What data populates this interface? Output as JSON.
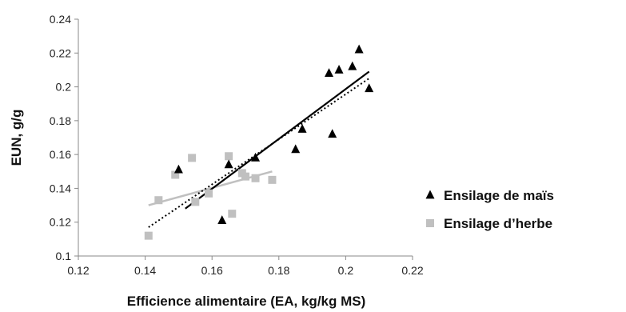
{
  "chart_data": {
    "type": "scatter",
    "xlabel": "Efficience alimentaire (EA, kg/kg MS)",
    "ylabel": "EUN, g/g",
    "xlim": [
      0.12,
      0.22
    ],
    "ylim": [
      0.1,
      0.24
    ],
    "x_ticks": [
      "0.12",
      "0.14",
      "0.16",
      "0.18",
      "0.2",
      "0.22"
    ],
    "y_ticks": [
      "0.1",
      "0.12",
      "0.14",
      "0.16",
      "0.18",
      "0.2",
      "0.22",
      "0.24"
    ],
    "grid": false,
    "legend_position": "right",
    "series": [
      {
        "name": "Ensilage de maïs",
        "marker": "triangle",
        "color": "#000000",
        "points": [
          [
            0.15,
            0.151
          ],
          [
            0.163,
            0.121
          ],
          [
            0.165,
            0.154
          ],
          [
            0.173,
            0.158
          ],
          [
            0.185,
            0.163
          ],
          [
            0.187,
            0.175
          ],
          [
            0.195,
            0.208
          ],
          [
            0.196,
            0.172
          ],
          [
            0.198,
            0.21
          ],
          [
            0.202,
            0.212
          ],
          [
            0.204,
            0.222
          ],
          [
            0.207,
            0.199
          ]
        ],
        "trend_solid": [
          [
            0.152,
            0.128
          ],
          [
            0.207,
            0.209
          ]
        ],
        "trend_dotted": [
          [
            0.141,
            0.117
          ],
          [
            0.207,
            0.205
          ]
        ]
      },
      {
        "name": "Ensilage d’herbe",
        "marker": "square",
        "color": "#c0c0c0",
        "points": [
          [
            0.141,
            0.112
          ],
          [
            0.144,
            0.133
          ],
          [
            0.149,
            0.148
          ],
          [
            0.154,
            0.158
          ],
          [
            0.155,
            0.132
          ],
          [
            0.159,
            0.137
          ],
          [
            0.165,
            0.159
          ],
          [
            0.166,
            0.125
          ],
          [
            0.169,
            0.149
          ],
          [
            0.17,
            0.147
          ],
          [
            0.173,
            0.146
          ],
          [
            0.178,
            0.145
          ]
        ],
        "trend_solid": [
          [
            0.141,
            0.13
          ],
          [
            0.178,
            0.15
          ]
        ]
      }
    ]
  }
}
